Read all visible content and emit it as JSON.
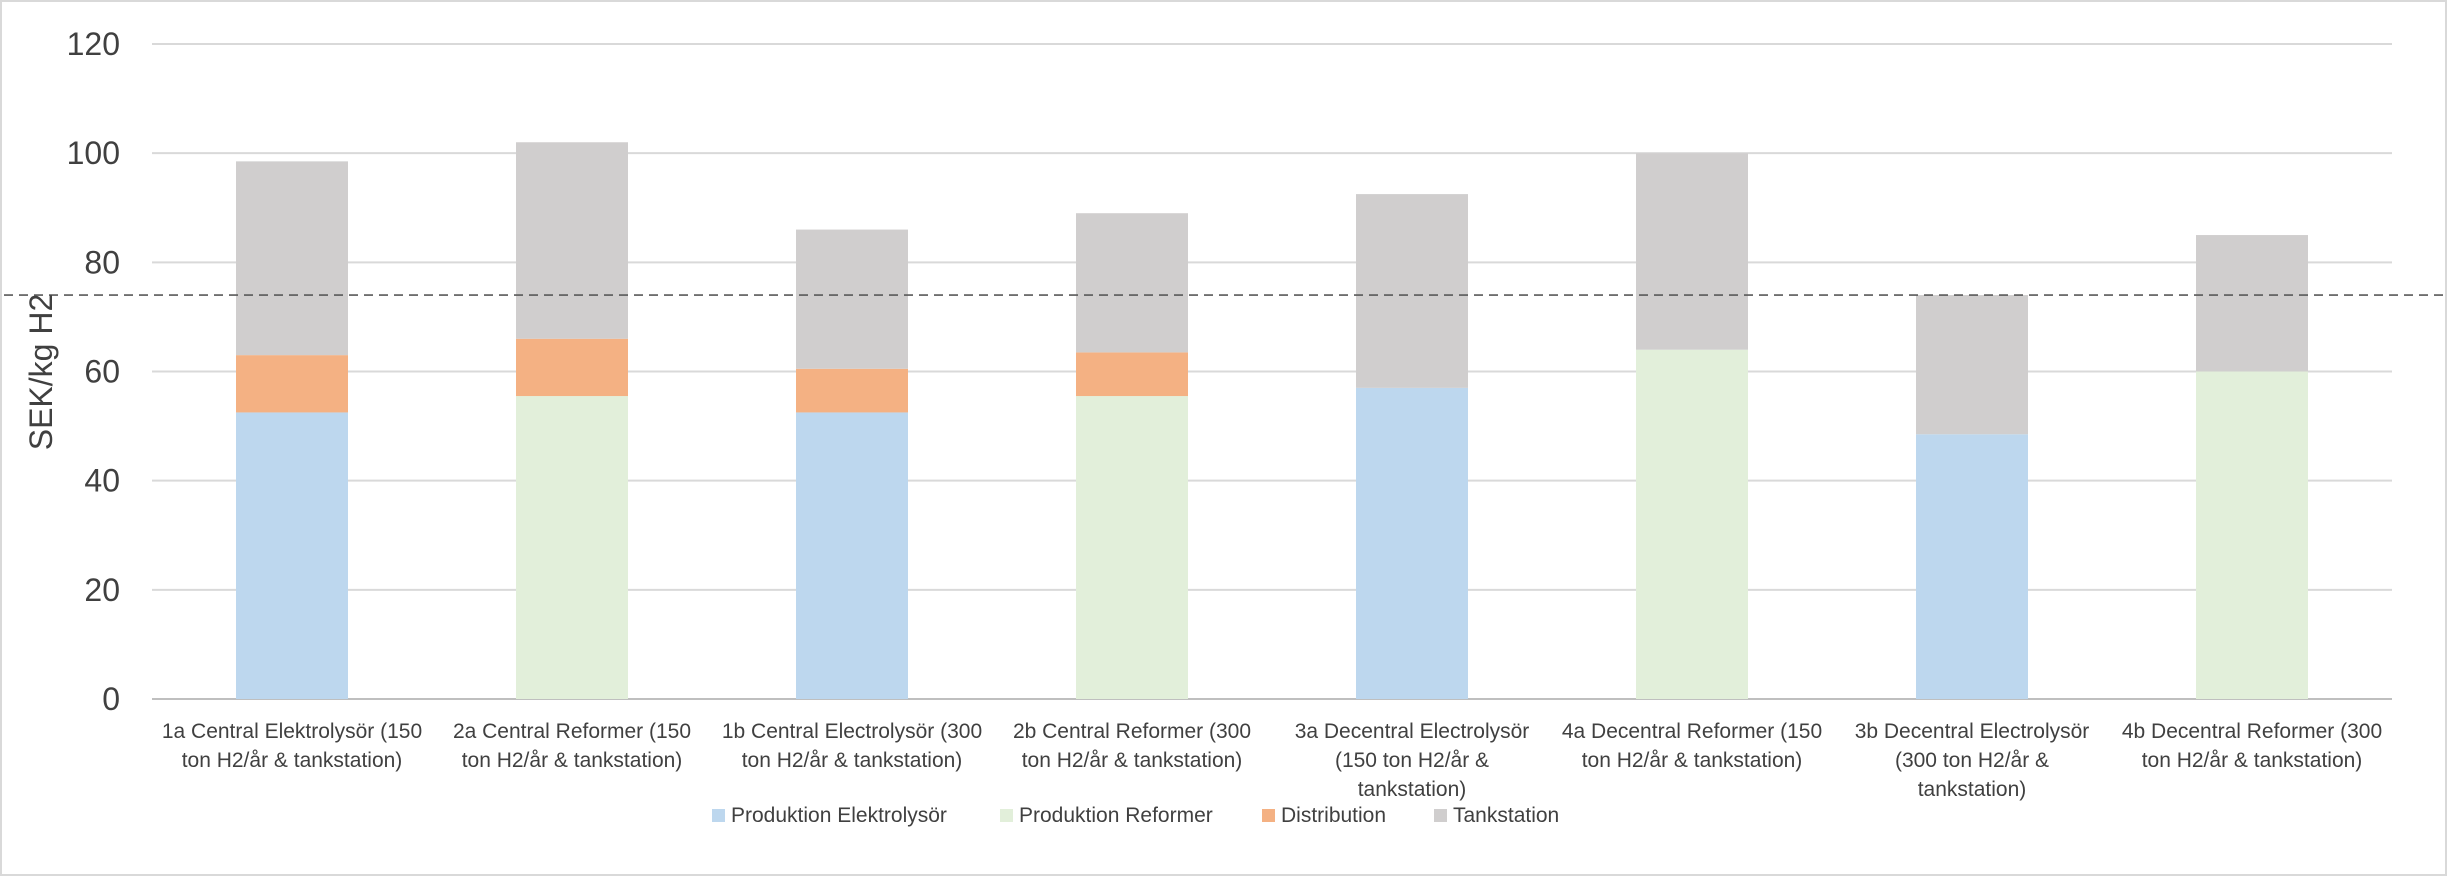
{
  "chart_data": {
    "type": "bar",
    "stacked": true,
    "ylabel": "SEK/kg H2",
    "xlabel": "",
    "ylim": [
      0,
      120
    ],
    "yticks": [
      0,
      20,
      40,
      60,
      80,
      100,
      120
    ],
    "grid": true,
    "legend_position": "bottom",
    "reference_line": {
      "y": 74,
      "style": "dashed"
    },
    "categories": [
      [
        "1a Central Elektrolysör (150",
        "ton H2/år & tankstation)"
      ],
      [
        "2a Central Reformer (150",
        "ton H2/år & tankstation)"
      ],
      [
        "1b Central Electrolysör (300",
        "ton H2/år & tankstation)"
      ],
      [
        "2b Central Reformer (300",
        "ton H2/år & tankstation)"
      ],
      [
        "3a Decentral Electrolysör",
        "(150 ton H2/år &",
        "tankstation)"
      ],
      [
        "4a Decentral Reformer (150",
        "ton H2/år & tankstation)"
      ],
      [
        "3b Decentral Electrolysör",
        "(300 ton H2/år &",
        "tankstation)"
      ],
      [
        "4b Decentral Reformer (300",
        "ton H2/år & tankstation)"
      ]
    ],
    "series": [
      {
        "name": "Produktion Elektrolysör",
        "color": "#bdd7ee",
        "values": [
          52.5,
          0,
          52.5,
          0,
          57,
          0,
          48.5,
          0
        ]
      },
      {
        "name": "Produktion Reformer",
        "color": "#e2efda",
        "values": [
          0,
          55.5,
          0,
          55.5,
          0,
          64,
          0,
          60
        ]
      },
      {
        "name": "Distribution",
        "color": "#f4b183",
        "values": [
          10.5,
          10.5,
          8,
          8,
          0,
          0,
          0,
          0
        ]
      },
      {
        "name": "Tankstation",
        "color": "#d0cece",
        "values": [
          35.5,
          36,
          25.5,
          25.5,
          35.5,
          36,
          25.5,
          25
        ]
      }
    ]
  }
}
